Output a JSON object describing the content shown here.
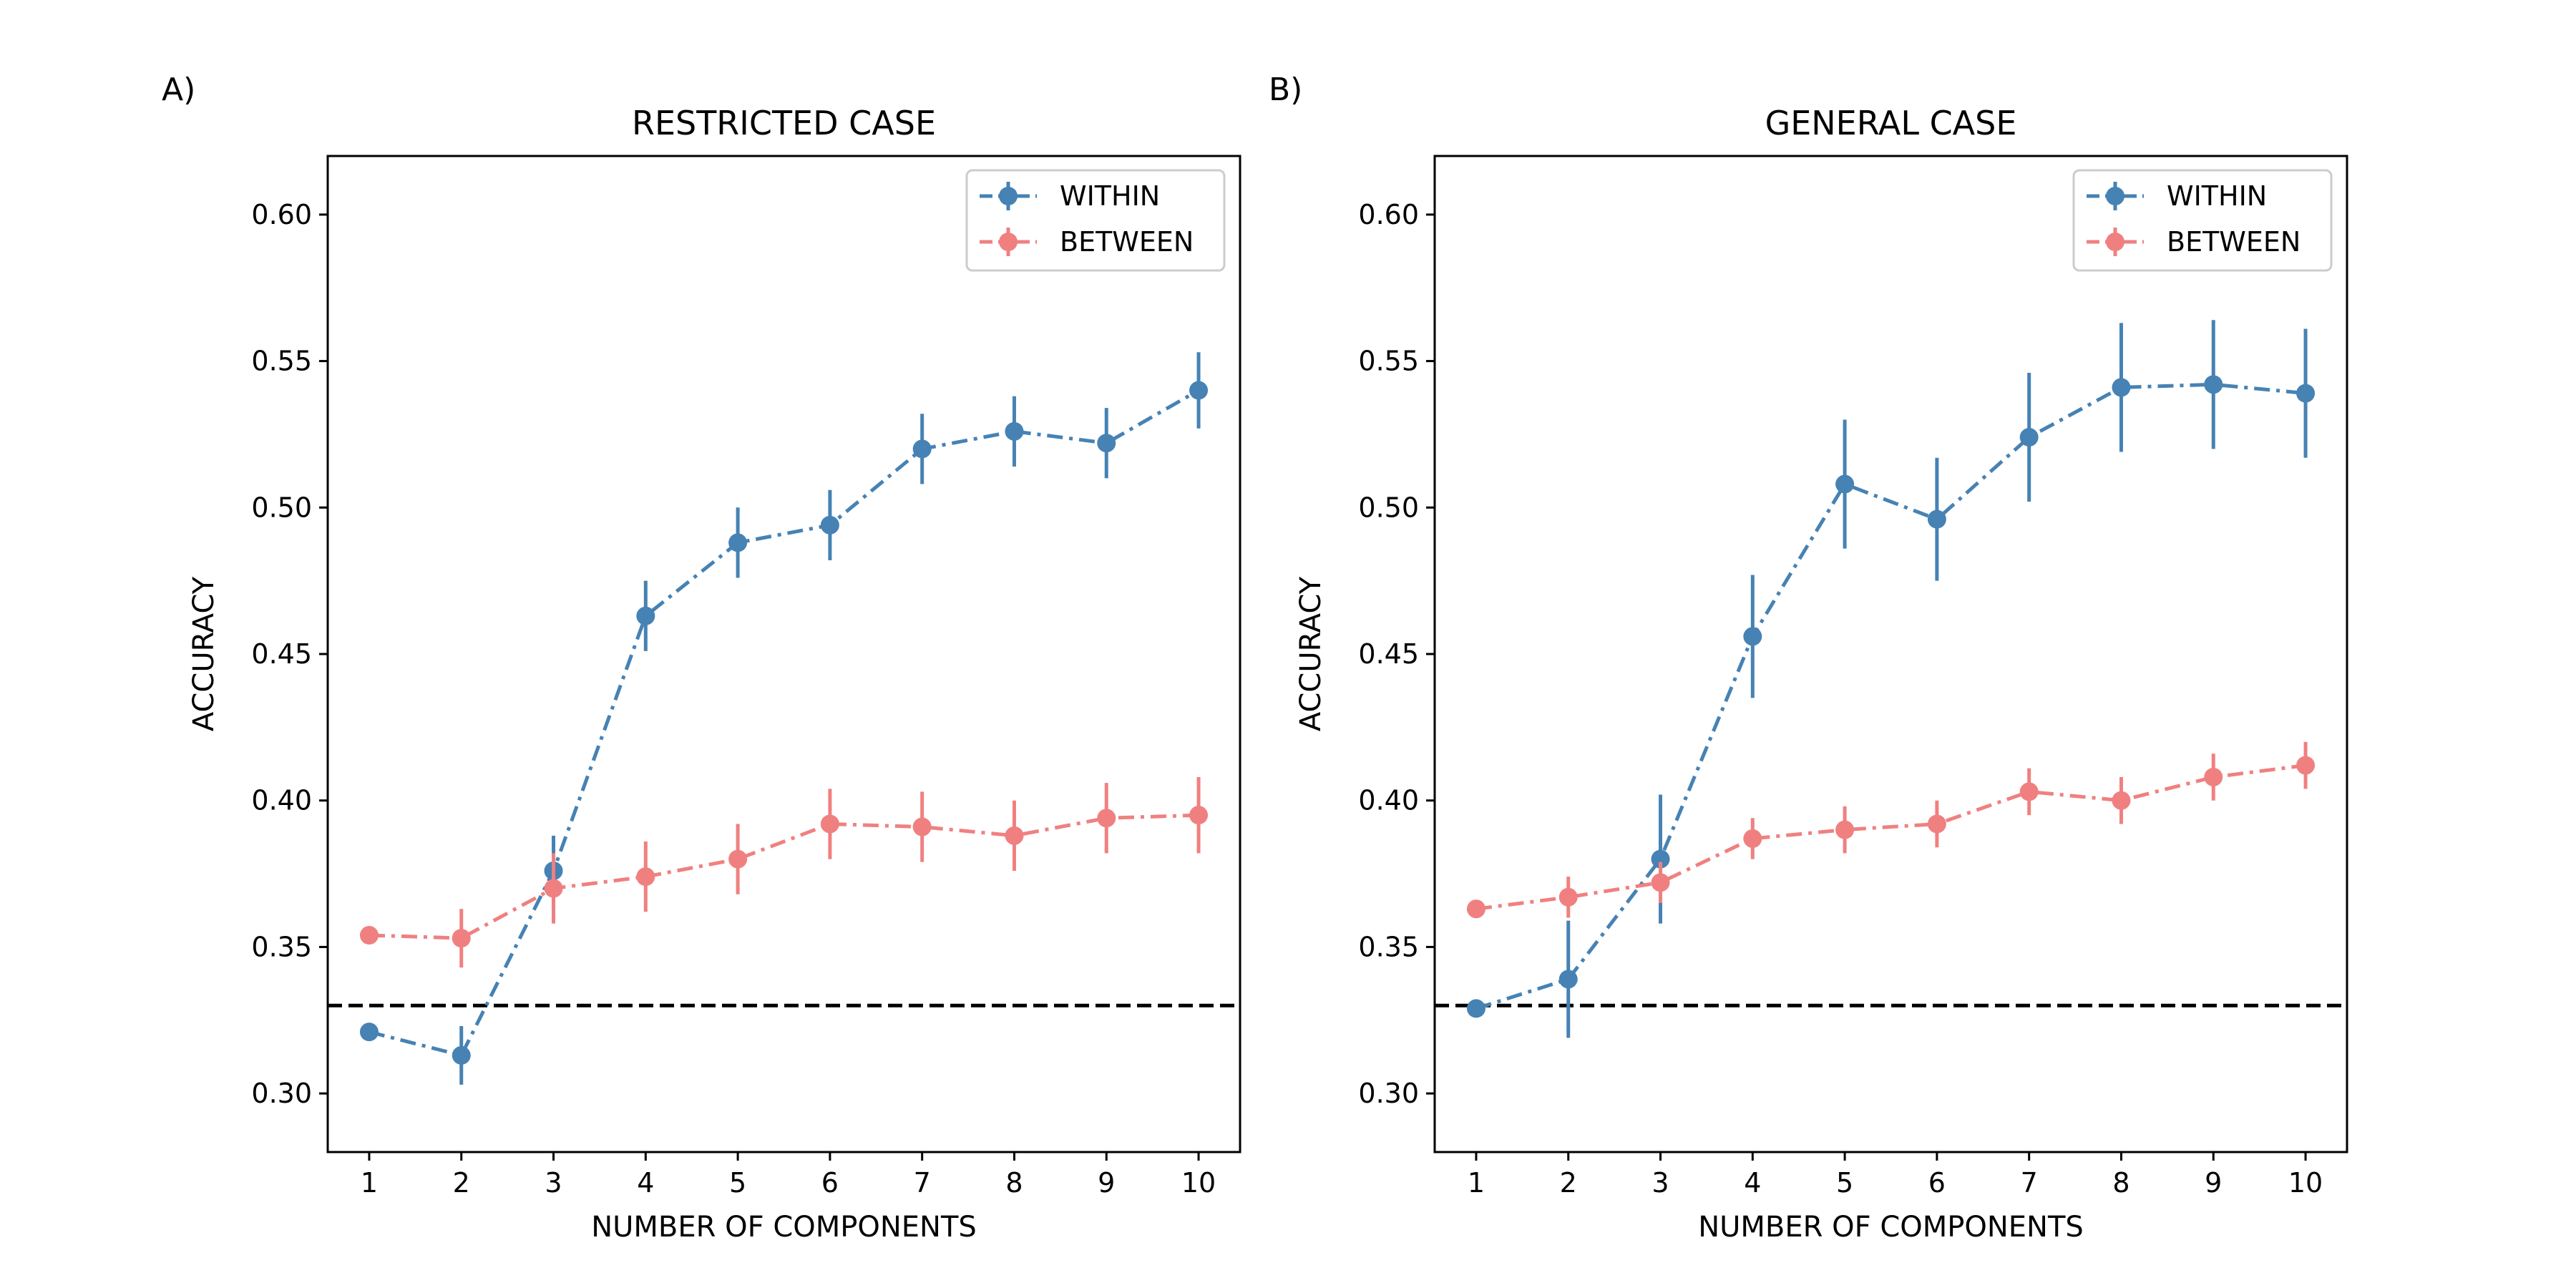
{
  "chart_data": [
    {
      "type": "line",
      "panel_label": "A)",
      "title": "RESTRICTED CASE",
      "xlabel": "NUMBER OF COMPONENTS",
      "ylabel": "ACCURACY",
      "xlim": [
        0.55,
        10.45
      ],
      "ylim": [
        0.28,
        0.62
      ],
      "x": [
        1,
        2,
        3,
        4,
        5,
        6,
        7,
        8,
        9,
        10
      ],
      "xticks": [
        "1",
        "2",
        "3",
        "4",
        "5",
        "6",
        "7",
        "8",
        "9",
        "10"
      ],
      "yticks": [
        "0.30",
        "0.35",
        "0.40",
        "0.45",
        "0.50",
        "0.55",
        "0.60"
      ],
      "reference_line": 0.33,
      "legend_position": "top-right",
      "grid": false,
      "series": [
        {
          "name": "WITHIN",
          "color": "#4682b4",
          "values": [
            0.321,
            0.313,
            0.376,
            0.463,
            0.488,
            0.494,
            0.52,
            0.526,
            0.522,
            0.54
          ],
          "errors": [
            0.003,
            0.01,
            0.012,
            0.012,
            0.012,
            0.012,
            0.012,
            0.012,
            0.012,
            0.013
          ]
        },
        {
          "name": "BETWEEN",
          "color": "#f08080",
          "values": [
            0.354,
            0.353,
            0.37,
            0.374,
            0.38,
            0.392,
            0.391,
            0.388,
            0.394,
            0.395
          ],
          "errors": [
            0.002,
            0.01,
            0.012,
            0.012,
            0.012,
            0.012,
            0.012,
            0.012,
            0.012,
            0.013
          ]
        }
      ]
    },
    {
      "type": "line",
      "panel_label": "B)",
      "title": "GENERAL CASE",
      "xlabel": "NUMBER OF COMPONENTS",
      "ylabel": "ACCURACY",
      "xlim": [
        0.55,
        10.45
      ],
      "ylim": [
        0.28,
        0.62
      ],
      "x": [
        1,
        2,
        3,
        4,
        5,
        6,
        7,
        8,
        9,
        10
      ],
      "xticks": [
        "1",
        "2",
        "3",
        "4",
        "5",
        "6",
        "7",
        "8",
        "9",
        "10"
      ],
      "yticks": [
        "0.30",
        "0.35",
        "0.40",
        "0.45",
        "0.50",
        "0.55",
        "0.60"
      ],
      "reference_line": 0.33,
      "legend_position": "top-right",
      "grid": false,
      "series": [
        {
          "name": "WITHIN",
          "color": "#4682b4",
          "values": [
            0.329,
            0.339,
            0.38,
            0.456,
            0.508,
            0.496,
            0.524,
            0.541,
            0.542,
            0.539
          ],
          "errors": [
            0.002,
            0.02,
            0.022,
            0.021,
            0.022,
            0.021,
            0.022,
            0.022,
            0.022,
            0.022
          ]
        },
        {
          "name": "BETWEEN",
          "color": "#f08080",
          "values": [
            0.363,
            0.367,
            0.372,
            0.387,
            0.39,
            0.392,
            0.403,
            0.4,
            0.408,
            0.412
          ],
          "errors": [
            0.002,
            0.007,
            0.007,
            0.007,
            0.008,
            0.008,
            0.008,
            0.008,
            0.008,
            0.008
          ]
        }
      ]
    }
  ]
}
